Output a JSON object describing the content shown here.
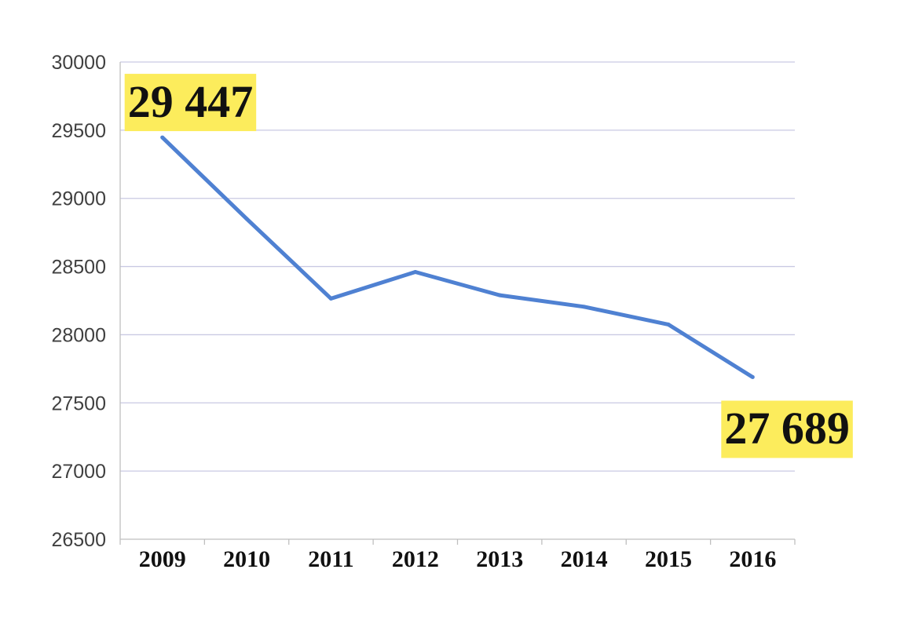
{
  "chart_data": {
    "type": "line",
    "title": "",
    "xlabel": "",
    "ylabel": "",
    "categories": [
      "2009",
      "2010",
      "2011",
      "2012",
      "2013",
      "2014",
      "2015",
      "2016"
    ],
    "series": [
      {
        "values": [
          29447,
          28850,
          28265,
          28460,
          28290,
          28205,
          28075,
          27689
        ],
        "color": "#4f81d2"
      }
    ],
    "ylim": [
      26500,
      30000
    ],
    "yticks": [
      "26500",
      "27000",
      "27500",
      "28000",
      "28500",
      "29000",
      "29500",
      "30000"
    ],
    "grid": true,
    "legend": "none",
    "annotations": [
      {
        "label": "29 447",
        "category": "2009",
        "value": 29447,
        "background": "#fcec5c"
      },
      {
        "label": "27 689",
        "category": "2016",
        "value": 27689,
        "background": "#fcec5c"
      }
    ],
    "colors": {
      "gridline": "#c9c9e3",
      "axis": "#bfbfbf",
      "highlight": "#fcec5c"
    }
  }
}
